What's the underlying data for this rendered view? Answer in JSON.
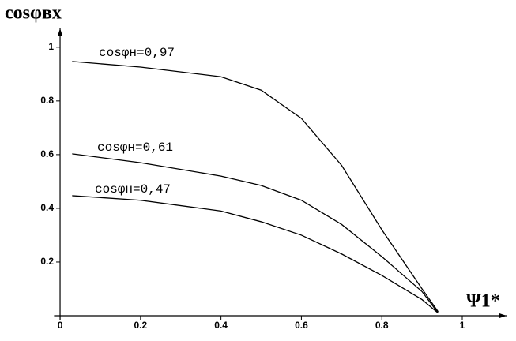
{
  "chart_data": {
    "type": "line",
    "y_label": "cosφвх",
    "x_label": "Ψ1*",
    "x": [
      0.03,
      0.2,
      0.4,
      0.5,
      0.6,
      0.7,
      0.8,
      0.9,
      0.94
    ],
    "series": [
      {
        "name": "cosφн=0,97",
        "color": "#000000",
        "values": [
          0.947,
          0.926,
          0.89,
          0.84,
          0.735,
          0.56,
          0.32,
          0.1,
          0.015
        ]
      },
      {
        "name": "cosφн=0,61",
        "color": "#000000",
        "values": [
          0.603,
          0.57,
          0.52,
          0.485,
          0.43,
          0.34,
          0.22,
          0.09,
          0.01
        ]
      },
      {
        "name": "cosφн=0,47",
        "color": "#000000",
        "values": [
          0.447,
          0.43,
          0.39,
          0.35,
          0.3,
          0.23,
          0.15,
          0.06,
          0.01
        ]
      }
    ],
    "xlim": [
      -0.015,
      1.11
    ],
    "ylim": [
      0,
      1.07
    ],
    "xticks": [
      0,
      0.2,
      0.4,
      0.6,
      0.8,
      1
    ],
    "yticks": [
      0.2,
      0.4,
      0.6,
      0.8,
      1
    ],
    "grid": false
  }
}
